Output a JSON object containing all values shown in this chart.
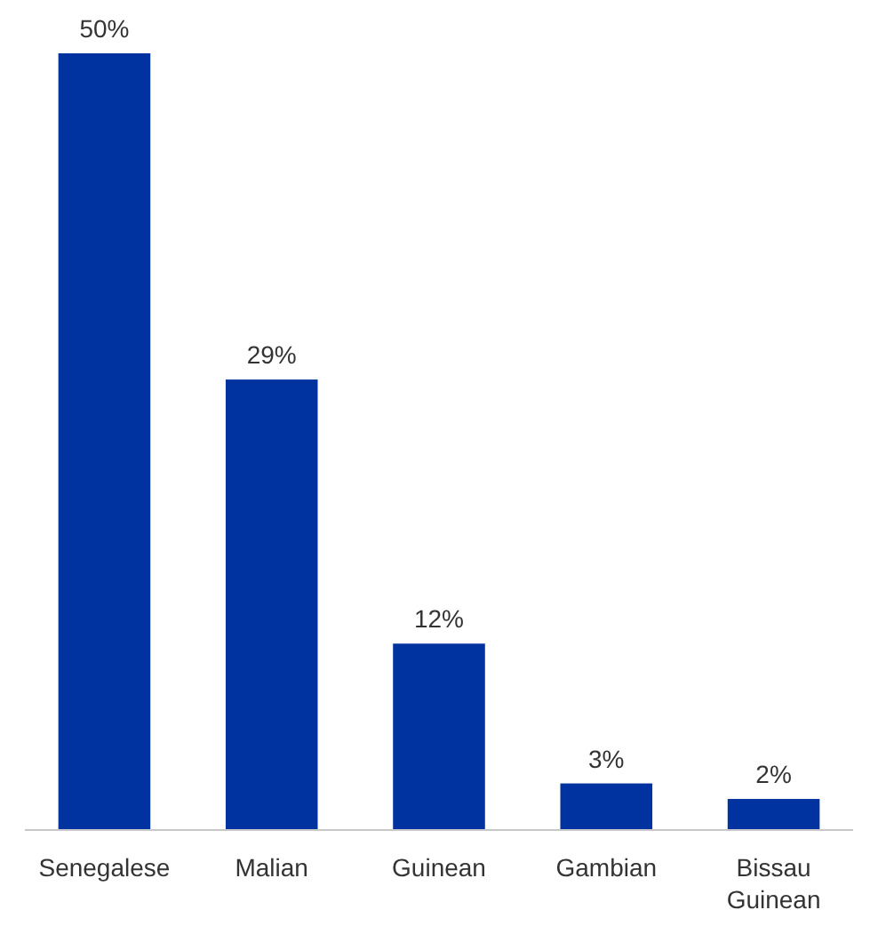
{
  "chart_data": {
    "type": "bar",
    "categories": [
      "Senegalese",
      "Malian",
      "Guinean",
      "Gambian",
      "Bissau Guinean"
    ],
    "values": [
      50,
      29,
      12,
      3,
      2
    ],
    "value_labels": [
      "50%",
      "29%",
      "12%",
      "3%",
      "2%"
    ],
    "color": "#0033a0"
  }
}
